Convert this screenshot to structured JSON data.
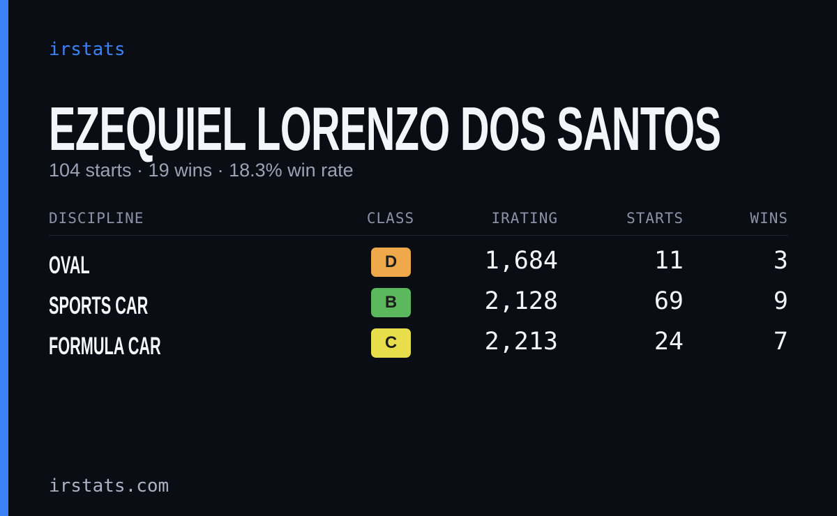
{
  "header": {
    "brand": "irstats",
    "name": "EZEQUIEL LORENZO DOS SANTOS",
    "summary": "104 starts · 19 wins · 18.3% win rate"
  },
  "table": {
    "columns": [
      "DISCIPLINE",
      "CLASS",
      "IRATING",
      "STARTS",
      "WINS"
    ],
    "rows": [
      {
        "discipline": "OVAL",
        "class": "D",
        "class_color": "#f0a94a",
        "irating": "1,684",
        "starts": "11",
        "wins": "3"
      },
      {
        "discipline": "SPORTS CAR",
        "class": "B",
        "class_color": "#5cb85c",
        "irating": "2,128",
        "starts": "69",
        "wins": "9"
      },
      {
        "discipline": "FORMULA CAR",
        "class": "C",
        "class_color": "#e8dd4b",
        "irating": "2,213",
        "starts": "24",
        "wins": "7"
      }
    ]
  },
  "footer": {
    "url": "irstats.com"
  }
}
